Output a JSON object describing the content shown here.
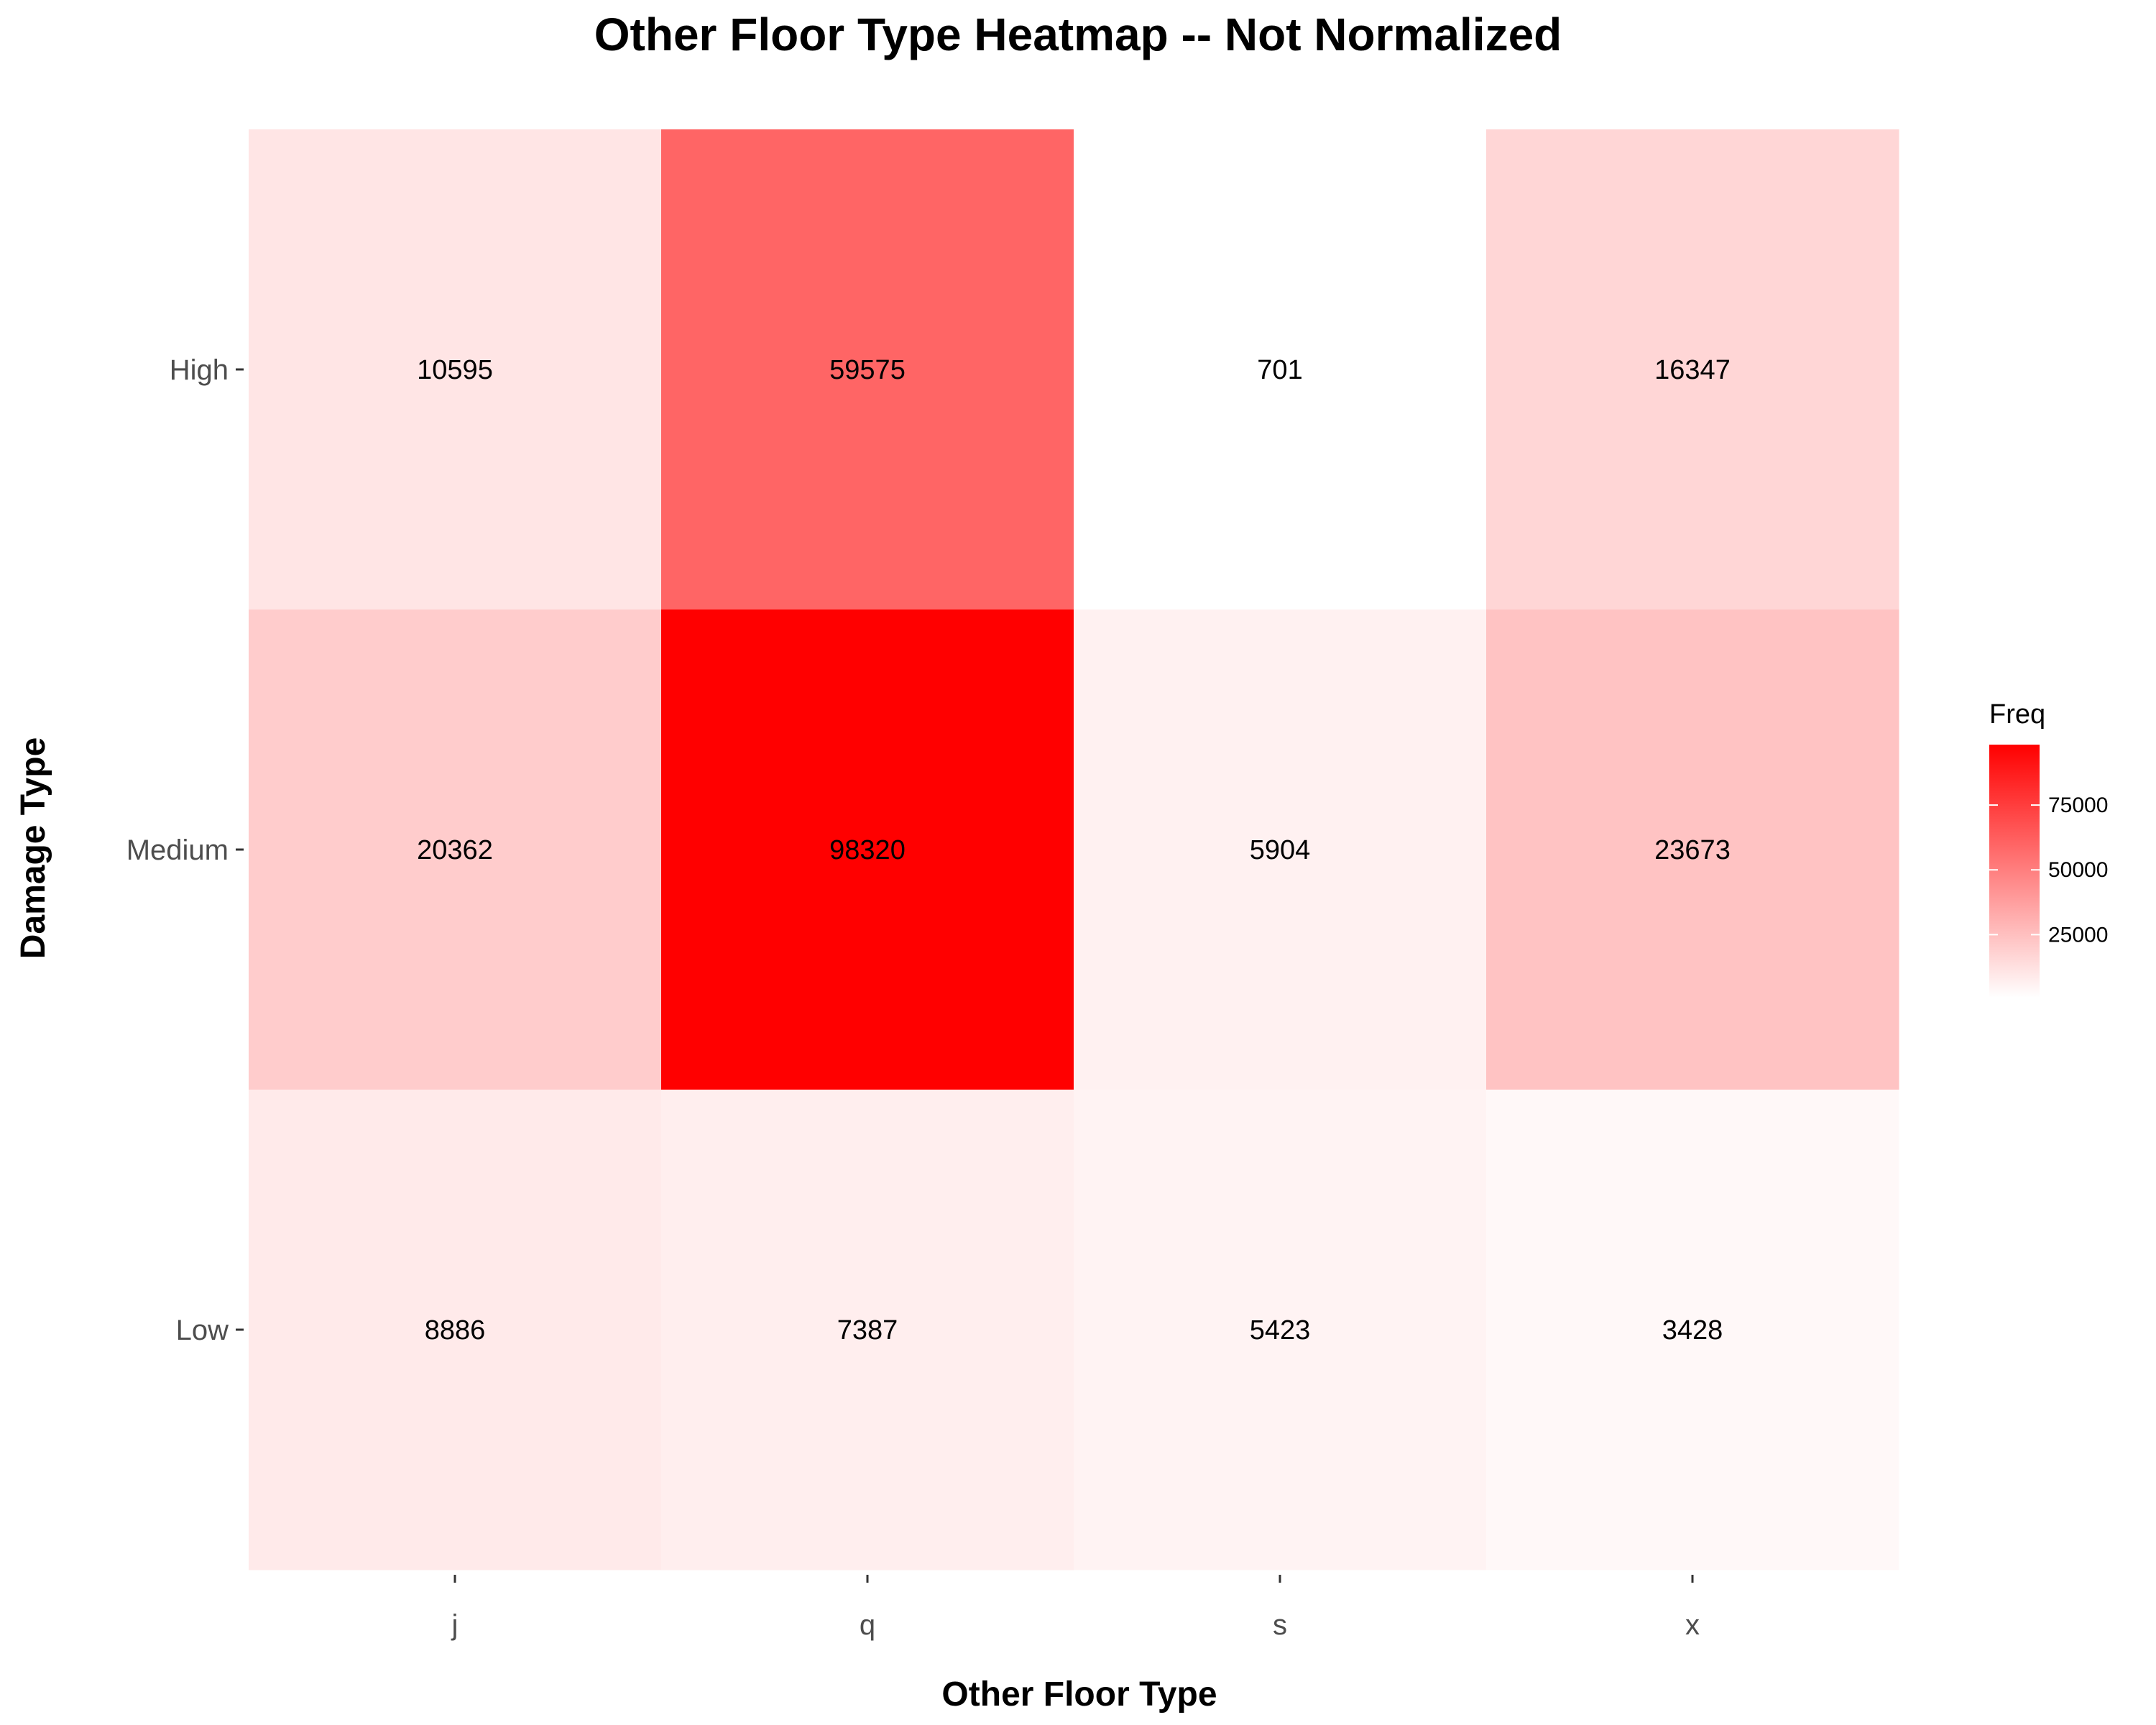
{
  "chart_data": {
    "type": "heatmap",
    "title": "Other Floor Type Heatmap -- Not Normalized",
    "xlabel": "Other Floor Type",
    "ylabel": "Damage Type",
    "x_categories": [
      "j",
      "q",
      "s",
      "x"
    ],
    "y_categories": [
      "High",
      "Medium",
      "Low"
    ],
    "values": [
      [
        10595,
        59575,
        701,
        16347
      ],
      [
        20362,
        98320,
        5904,
        23673
      ],
      [
        8886,
        7387,
        5423,
        3428
      ]
    ],
    "legend": {
      "title": "Freq",
      "ticks": [
        25000,
        50000,
        75000
      ],
      "color_low": "#ffffff",
      "color_high": "#ff0000"
    },
    "grid": false,
    "legend_position": "right"
  }
}
